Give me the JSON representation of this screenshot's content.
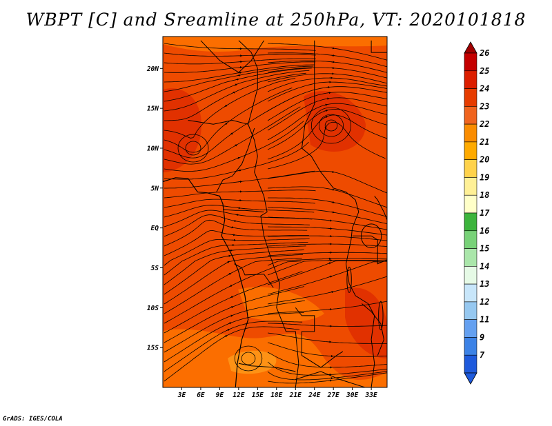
{
  "title": "WBPT [C] and Sreamline at 250hPa, VT: 2020101818",
  "credit": "GrADS: IGES/COLA",
  "map": {
    "lat_range": [
      -20,
      24
    ],
    "lon_range": [
      0,
      35.5
    ],
    "lat_ticks": [
      {
        "value": 20,
        "label": "20N"
      },
      {
        "value": 15,
        "label": "15N"
      },
      {
        "value": 10,
        "label": "10N"
      },
      {
        "value": 5,
        "label": "5N"
      },
      {
        "value": 0,
        "label": "EQ"
      },
      {
        "value": -5,
        "label": "5S"
      },
      {
        "value": -10,
        "label": "10S"
      },
      {
        "value": -15,
        "label": "15S"
      }
    ],
    "lon_ticks": [
      {
        "value": 3,
        "label": "3E"
      },
      {
        "value": 6,
        "label": "6E"
      },
      {
        "value": 9,
        "label": "9E"
      },
      {
        "value": 12,
        "label": "12E"
      },
      {
        "value": 15,
        "label": "15E"
      },
      {
        "value": 18,
        "label": "18E"
      },
      {
        "value": 21,
        "label": "21E"
      },
      {
        "value": 24,
        "label": "24E"
      },
      {
        "value": 27,
        "label": "27E"
      },
      {
        "value": 30,
        "label": "30E"
      },
      {
        "value": 33,
        "label": "33E"
      }
    ],
    "dominant_color": "#ee4b00",
    "secondary_colors": [
      "#ff7a00",
      "#ff9f1c",
      "#dc2800"
    ]
  },
  "colorbar": {
    "labels": [
      "26",
      "25",
      "24",
      "23",
      "22",
      "21",
      "20",
      "19",
      "18",
      "17",
      "16",
      "15",
      "14",
      "13",
      "12",
      "11",
      "9",
      "7"
    ],
    "colors": [
      "#c40000",
      "#dc1e00",
      "#e63c00",
      "#f0641e",
      "#fa8c00",
      "#ffaa00",
      "#ffd24b",
      "#fff096",
      "#ffffc8",
      "#3cb43c",
      "#78d278",
      "#aae6aa",
      "#e6fae6",
      "#c8e6fa",
      "#96c8f0",
      "#64a0f0",
      "#3c82e6",
      "#1e5adc"
    ],
    "top_arrow_color": "#a00000",
    "bottom_arrow_color": "#1e5adc"
  }
}
